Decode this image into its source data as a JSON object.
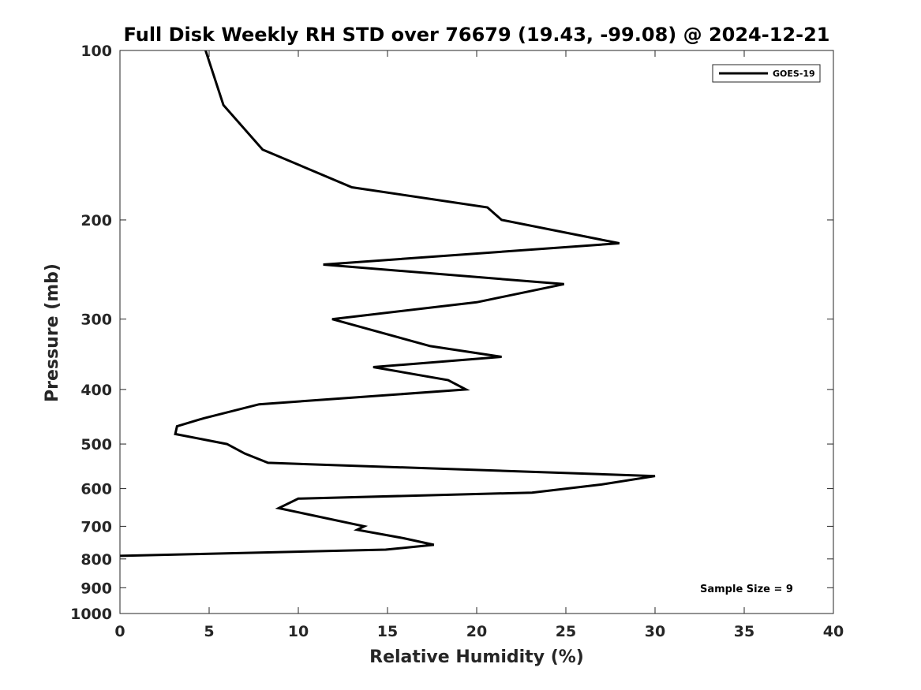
{
  "chart_data": {
    "type": "line",
    "title": "Full Disk Weekly RH STD over 76679 (19.43, -99.08) @ 2024-12-21",
    "xlabel": "Relative Humidity (%)",
    "ylabel": "Pressure (mb)",
    "xlim": [
      0,
      40
    ],
    "ylim": [
      100,
      1000
    ],
    "yscale": "log",
    "x_ticks": [
      0,
      5,
      10,
      15,
      20,
      25,
      30,
      35,
      40
    ],
    "y_ticks": [
      100,
      200,
      300,
      400,
      500,
      600,
      700,
      800,
      900,
      1000
    ],
    "legend": {
      "position": "top-right",
      "entries": [
        "GOES-19"
      ]
    },
    "annotation": "Sample Size = 9",
    "series": [
      {
        "name": "GOES-19",
        "color": "#000000",
        "x": [
          4.8,
          5.8,
          8.0,
          13.0,
          20.6,
          21.4,
          28.0,
          11.4,
          24.9,
          20.0,
          11.9,
          17.4,
          21.4,
          14.2,
          18.4,
          19.4,
          7.8,
          4.7,
          3.2,
          3.1,
          6.0,
          7.0,
          8.3,
          30.0,
          27.0,
          23.1,
          10.0,
          8.9,
          13.7,
          13.3,
          15.9,
          17.6,
          14.9,
          0.0
        ],
        "y": [
          100,
          125,
          150,
          175,
          190,
          200,
          220,
          240,
          260,
          280,
          300,
          335,
          350,
          365,
          385,
          400,
          425,
          450,
          465,
          480,
          500,
          520,
          540,
          570,
          590,
          610,
          625,
          650,
          700,
          710,
          735,
          755,
          770,
          790
        ]
      }
    ]
  }
}
